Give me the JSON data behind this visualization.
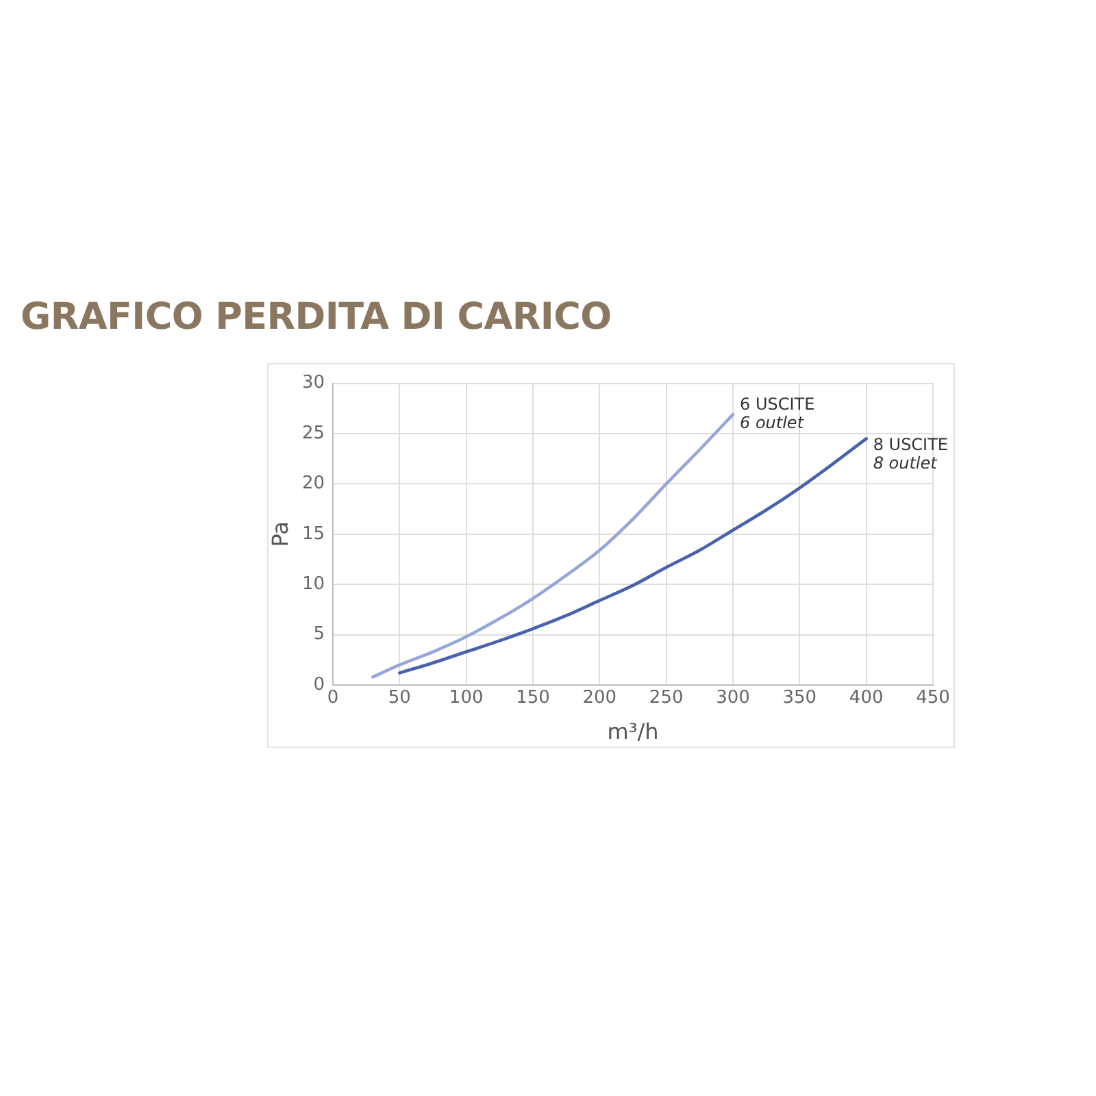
{
  "chart_data": {
    "type": "line",
    "title": "GRAFICO PERDITA DI CARICO",
    "xlabel": "m³/h",
    "ylabel": "Pa",
    "xlim": [
      0,
      450
    ],
    "xticks": [
      0,
      50,
      100,
      150,
      200,
      250,
      300,
      350,
      400,
      450
    ],
    "ylim": [
      0,
      30
    ],
    "yticks": [
      0,
      5,
      10,
      15,
      20,
      25,
      30
    ],
    "grid": true,
    "marker": "none",
    "line_style": "solid",
    "series": [
      {
        "name": "6 USCITE\n6 outlet",
        "color": "#97a6d8",
        "x": [
          30,
          50,
          75,
          100,
          125,
          150,
          175,
          200,
          225,
          250,
          275,
          300
        ],
        "values": [
          0.8,
          2.0,
          3.3,
          4.8,
          6.6,
          8.6,
          10.9,
          13.4,
          16.5,
          20.0,
          23.4,
          26.9
        ]
      },
      {
        "name": "8 USCITE\n8 outlet",
        "color": "#4862ae",
        "x": [
          50,
          75,
          100,
          125,
          150,
          175,
          200,
          225,
          250,
          275,
          300,
          325,
          350,
          375,
          400
        ],
        "values": [
          1.2,
          2.2,
          3.3,
          4.4,
          5.6,
          6.9,
          8.4,
          9.9,
          11.7,
          13.4,
          15.4,
          17.4,
          19.6,
          22.0,
          24.5
        ]
      }
    ]
  }
}
